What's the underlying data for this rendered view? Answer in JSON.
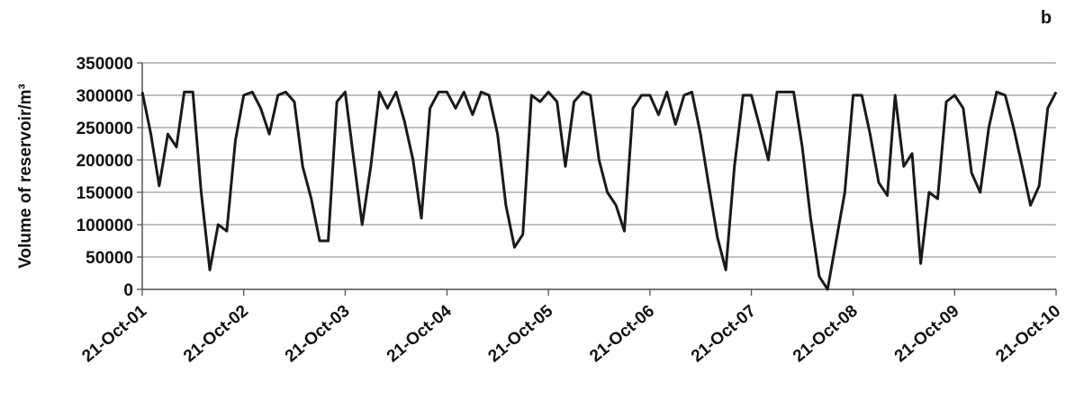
{
  "chart_data": {
    "type": "line",
    "panel_label": "b",
    "y_label": "Volume of reservoir/m³",
    "color": "#1a1a1a",
    "grid": true,
    "ylim": [
      0,
      350000
    ],
    "yticks": [
      0,
      50000,
      100000,
      150000,
      200000,
      250000,
      300000,
      350000
    ],
    "xlim": [
      "2001-10-21",
      "2010-10-21"
    ],
    "xticks": [
      {
        "value": "2001-10-21",
        "label": "21-Oct-01"
      },
      {
        "value": "2002-10-21",
        "label": "21-Oct-02"
      },
      {
        "value": "2003-10-21",
        "label": "21-Oct-03"
      },
      {
        "value": "2004-10-21",
        "label": "21-Oct-04"
      },
      {
        "value": "2005-10-21",
        "label": "21-Oct-05"
      },
      {
        "value": "2006-10-21",
        "label": "21-Oct-06"
      },
      {
        "value": "2007-10-21",
        "label": "21-Oct-07"
      },
      {
        "value": "2008-10-21",
        "label": "21-Oct-08"
      },
      {
        "value": "2009-10-21",
        "label": "21-Oct-09"
      },
      {
        "value": "2010-10-21",
        "label": "21-Oct-10"
      }
    ],
    "x": [
      "2001-10-21",
      "2001-11-21",
      "2001-12-21",
      "2002-01-21",
      "2002-02-21",
      "2002-03-21",
      "2002-04-21",
      "2002-05-21",
      "2002-06-21",
      "2002-07-21",
      "2002-08-21",
      "2002-09-21",
      "2002-10-21",
      "2002-11-21",
      "2002-12-21",
      "2003-01-21",
      "2003-02-21",
      "2003-03-21",
      "2003-04-21",
      "2003-05-21",
      "2003-06-21",
      "2003-07-21",
      "2003-08-21",
      "2003-09-21",
      "2003-10-21",
      "2003-11-21",
      "2003-12-21",
      "2004-01-21",
      "2004-02-21",
      "2004-03-21",
      "2004-04-21",
      "2004-05-21",
      "2004-06-21",
      "2004-07-21",
      "2004-08-21",
      "2004-09-21",
      "2004-10-21",
      "2004-11-21",
      "2004-12-21",
      "2005-01-21",
      "2005-02-21",
      "2005-03-21",
      "2005-04-21",
      "2005-05-21",
      "2005-06-21",
      "2005-07-21",
      "2005-08-21",
      "2005-09-21",
      "2005-10-21",
      "2005-11-21",
      "2005-12-21",
      "2006-01-21",
      "2006-02-21",
      "2006-03-21",
      "2006-04-21",
      "2006-05-21",
      "2006-06-21",
      "2006-07-21",
      "2006-08-21",
      "2006-09-21",
      "2006-10-21",
      "2006-11-21",
      "2006-12-21",
      "2007-01-21",
      "2007-02-21",
      "2007-03-21",
      "2007-04-21",
      "2007-05-21",
      "2007-06-21",
      "2007-07-21",
      "2007-08-21",
      "2007-09-21",
      "2007-10-21",
      "2007-11-21",
      "2007-12-21",
      "2008-01-21",
      "2008-02-21",
      "2008-03-21",
      "2008-04-21",
      "2008-05-21",
      "2008-06-21",
      "2008-07-21",
      "2008-08-21",
      "2008-09-21",
      "2008-10-21",
      "2008-11-21",
      "2008-12-21",
      "2009-01-21",
      "2009-02-21",
      "2009-03-21",
      "2009-04-21",
      "2009-05-21",
      "2009-06-21",
      "2009-07-21",
      "2009-08-21",
      "2009-09-21",
      "2009-10-21",
      "2009-11-21",
      "2009-12-21",
      "2010-01-21",
      "2010-02-21",
      "2010-03-21",
      "2010-04-21",
      "2010-05-21",
      "2010-06-21",
      "2010-07-21",
      "2010-08-21",
      "2010-09-21",
      "2010-10-21"
    ],
    "values": [
      305000,
      240000,
      160000,
      240000,
      220000,
      305000,
      305000,
      150000,
      30000,
      100000,
      90000,
      230000,
      300000,
      305000,
      280000,
      240000,
      300000,
      305000,
      290000,
      190000,
      140000,
      75000,
      75000,
      290000,
      305000,
      200000,
      100000,
      190000,
      305000,
      280000,
      305000,
      260000,
      200000,
      110000,
      280000,
      305000,
      305000,
      280000,
      305000,
      270000,
      305000,
      300000,
      240000,
      130000,
      65000,
      85000,
      300000,
      290000,
      305000,
      290000,
      190000,
      290000,
      305000,
      300000,
      200000,
      150000,
      130000,
      90000,
      280000,
      300000,
      300000,
      270000,
      305000,
      255000,
      300000,
      305000,
      240000,
      160000,
      80000,
      30000,
      190000,
      300000,
      300000,
      250000,
      200000,
      305000,
      305000,
      305000,
      220000,
      110000,
      20000,
      0,
      75000,
      150000,
      300000,
      300000,
      240000,
      165000,
      145000,
      300000,
      190000,
      210000,
      40000,
      150000,
      140000,
      290000,
      300000,
      280000,
      180000,
      150000,
      250000,
      305000,
      300000,
      250000,
      190000,
      130000,
      160000,
      280000,
      305000
    ]
  }
}
